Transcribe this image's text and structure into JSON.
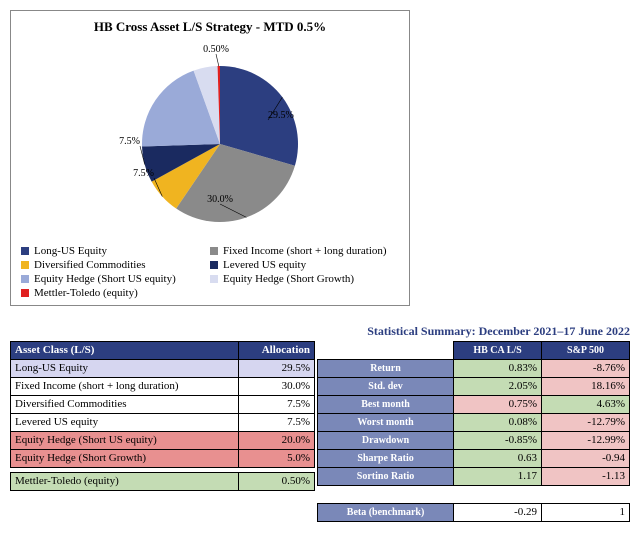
{
  "chart": {
    "title": "HB Cross Asset L/S Strategy - MTD 0.5%",
    "type": "pie",
    "slices": [
      {
        "label": "Long-US Equity",
        "value": 29.5,
        "display": "29.5%",
        "color": "#2c3e80"
      },
      {
        "label": "Fixed Income (short  + long duration)",
        "value": 30.0,
        "display": "30.0%",
        "color": "#8a8a8a"
      },
      {
        "label": "Diversified Commodities",
        "value": 7.5,
        "display": "7.5%",
        "color": "#f0b420"
      },
      {
        "label": "Levered US equity",
        "value": 7.5,
        "display": "7.5%",
        "color": "#1a2a60"
      },
      {
        "label": "Equity Hedge (Short US equity)",
        "value": 20.0,
        "display": "",
        "color": "#9aaad8"
      },
      {
        "label": "Equity Hedge (Short Growth)",
        "value": 5.0,
        "display": "",
        "color": "#d8dcf0"
      },
      {
        "label": "Mettler-Toledo (equity)",
        "value": 0.5,
        "display": "0.50%",
        "color": "#e02020"
      }
    ],
    "background_color": "#ffffff",
    "border_color": "#888888",
    "title_fontsize": 13,
    "label_fontsize": 10
  },
  "allocation_table": {
    "headers": {
      "asset": "Asset Class (L/S)",
      "alloc": "Allocation"
    },
    "rows": [
      {
        "name": "Long-US Equity",
        "alloc": "29.5%",
        "style": "lavender"
      },
      {
        "name": "Fixed Income (short  + long duration)",
        "alloc": "30.0%",
        "style": ""
      },
      {
        "name": "Diversified Commodities",
        "alloc": "7.5%",
        "style": ""
      },
      {
        "name": "Levered US equity",
        "alloc": "7.5%",
        "style": ""
      },
      {
        "name": "Equity Hedge (Short US equity)",
        "alloc": "20.0%",
        "style": "salmon"
      },
      {
        "name": "Equity Hedge (Short Growth)",
        "alloc": "5.0%",
        "style": "salmon"
      }
    ],
    "footer": {
      "name": "Mettler-Toledo (equity)",
      "alloc": "0.50%",
      "style": "green"
    }
  },
  "stats": {
    "title": "Statistical Summary: December 2021–17 June 2022",
    "headers": {
      "col1": "HB CA L/S",
      "col2": "S&P 500"
    },
    "rows": [
      {
        "metric": "Return",
        "v1": "0.83%",
        "c1": "green",
        "v2": "-8.76%",
        "c2": "pink"
      },
      {
        "metric": "Std. dev",
        "v1": "2.05%",
        "c1": "green",
        "v2": "18.16%",
        "c2": "pink"
      },
      {
        "metric": "Best month",
        "v1": "0.75%",
        "c1": "pink",
        "v2": "4.63%",
        "c2": "green"
      },
      {
        "metric": "Worst month",
        "v1": "0.08%",
        "c1": "green",
        "v2": "-12.79%",
        "c2": "pink"
      },
      {
        "metric": "Drawdown",
        "v1": "-0.85%",
        "c1": "green",
        "v2": "-12.99%",
        "c2": "pink"
      },
      {
        "metric": "Sharpe Ratio",
        "v1": "0.63",
        "c1": "green",
        "v2": "-0.94",
        "c2": "pink"
      },
      {
        "metric": "Sortino Ratio",
        "v1": "1.17",
        "c1": "green",
        "v2": "-1.13",
        "c2": "pink"
      }
    ],
    "footer": {
      "metric": "Beta (benchmark)",
      "v1": "-0.29",
      "c1": "",
      "v2": "1",
      "c2": ""
    }
  }
}
